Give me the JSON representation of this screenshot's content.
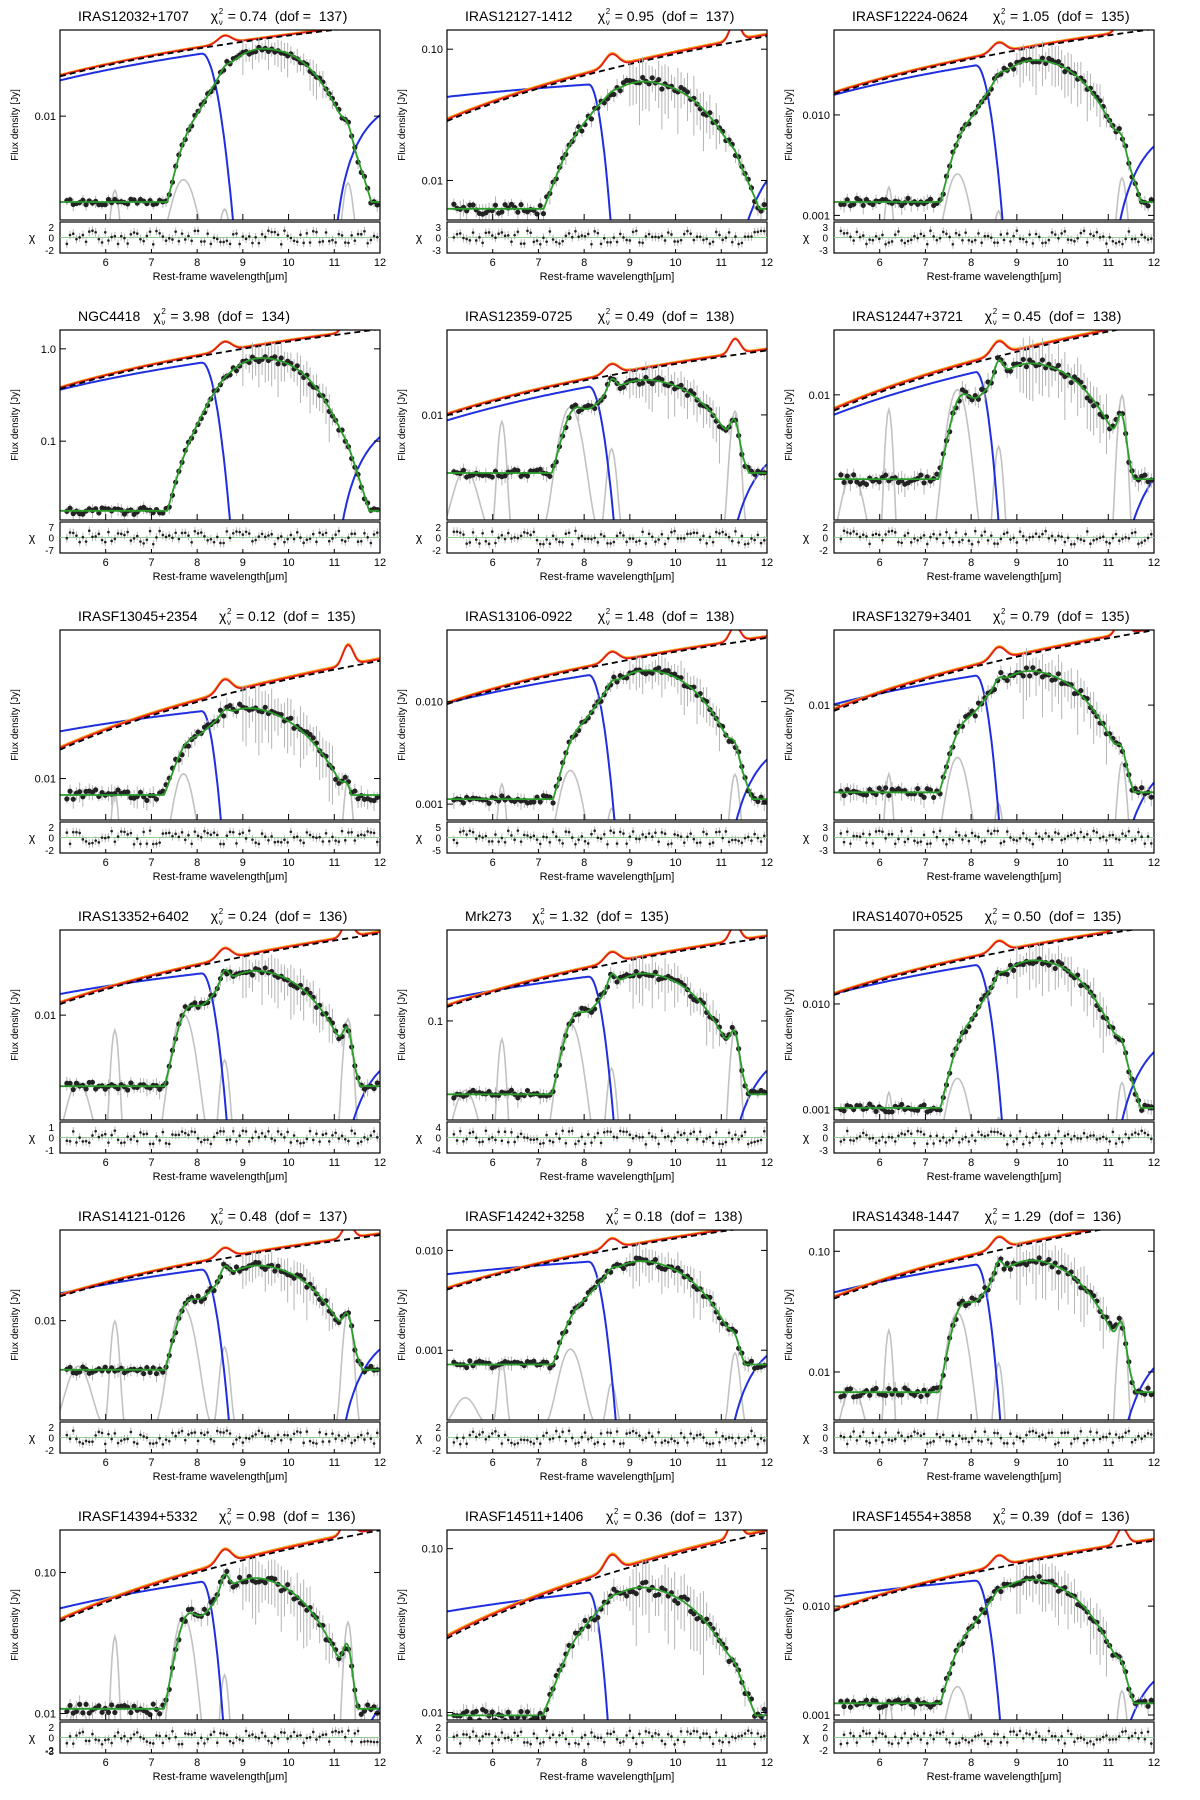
{
  "figure": {
    "xlabel": "Rest-frame wavelength[μm]",
    "ylabel": "Flux density [Jy]",
    "residual_label": "χ",
    "chi_symbol": "χ",
    "nu_sub": "ν",
    "colors": {
      "data": "#222222",
      "error": "#b4b4b4",
      "total_fit": "#2a9d2a",
      "model": "#e61c1c",
      "unobscured": "#f5a011",
      "continuum": "#1f2fe0",
      "pah": "#c2c2c2",
      "dashed": "#000000"
    }
  },
  "chart_data": [
    {
      "type": "line",
      "object": "IRAS12032+1707",
      "chi2": "0.74",
      "dof": "137",
      "xlim": [
        5,
        12
      ],
      "xticks": [
        "6",
        "7",
        "8",
        "9",
        "10",
        "11",
        "12"
      ],
      "ylim": [
        0.0005,
        0.12
      ],
      "yticks": [
        "0.01"
      ],
      "rticks": [
        "2",
        "0",
        "-2"
      ],
      "variant": "clear",
      "peak": 0.07,
      "trough": 0.00105,
      "slope": 1.6
    },
    {
      "type": "line",
      "object": "IRAS12127-1412",
      "chi2": "0.95",
      "dof": "137",
      "xlim": [
        5,
        12
      ],
      "xticks": [
        "6",
        "7",
        "8",
        "9",
        "10",
        "11",
        "12"
      ],
      "ylim": [
        0.005,
        0.14
      ],
      "yticks": [
        "0.10",
        "0.01"
      ],
      "rticks": [
        "3",
        "0",
        "-3"
      ],
      "variant": "broad",
      "peak": 0.063,
      "trough": 0.0076,
      "slope": 0.45
    },
    {
      "type": "line",
      "object": "IRASF12224-0624",
      "chi2": "1.05",
      "dof": "135",
      "xlim": [
        5,
        12
      ],
      "xticks": [
        "6",
        "7",
        "8",
        "9",
        "10",
        "11",
        "12"
      ],
      "ylim": [
        0.0009,
        0.07
      ],
      "yticks": [
        "0.010",
        "0.001"
      ],
      "rticks": [
        "3",
        "0",
        "-3"
      ],
      "variant": "clear",
      "peak": 0.036,
      "trough": 0.0017,
      "slope": 1.4
    },
    {
      "type": "line",
      "object": "NGC4418",
      "chi2": "3.98",
      "dof": "134",
      "xlim": [
        5,
        12
      ],
      "xticks": [
        "6",
        "7",
        "8",
        "9",
        "10",
        "11",
        "12"
      ],
      "ylim": [
        0.014,
        1.6
      ],
      "yticks": [
        "1.0",
        "0.1"
      ],
      "rticks": [
        "7",
        "0",
        "-7"
      ],
      "variant": "deep",
      "peak": 0.82,
      "trough": 0.022,
      "slope": 1.4
    },
    {
      "type": "line",
      "object": "IRAS12359-0725",
      "chi2": "0.49",
      "dof": "138",
      "xlim": [
        5,
        12
      ],
      "xticks": [
        "6",
        "7",
        "8",
        "9",
        "10",
        "11",
        "12"
      ],
      "ylim": [
        0.0009,
        0.07
      ],
      "yticks": [
        "0.01"
      ],
      "rticks": [
        "2",
        "0",
        "-2"
      ],
      "variant": "pah",
      "peak": 0.022,
      "trough": 0.0033,
      "slope": 1.6
    },
    {
      "type": "line",
      "object": "IRAS12447+3721",
      "chi2": "0.45",
      "dof": "138",
      "xlim": [
        5,
        12
      ],
      "xticks": [
        "6",
        "7",
        "8",
        "9",
        "10",
        "11",
        "12"
      ],
      "ylim": [
        0.0012,
        0.03
      ],
      "yticks": [
        "0.01"
      ],
      "rticks": [
        "2",
        "0",
        "-2"
      ],
      "variant": "pah",
      "peak": 0.017,
      "trough": 0.003,
      "slope": 1.5
    },
    {
      "type": "line",
      "object": "IRASF13045+2354",
      "chi2": "0.12",
      "dof": "135",
      "xlim": [
        5,
        12
      ],
      "xticks": [
        "6",
        "7",
        "8",
        "9",
        "10",
        "11",
        "12"
      ],
      "ylim": [
        0.005,
        0.12
      ],
      "yticks": [
        "0.01"
      ],
      "rticks": [
        "2",
        "0",
        "-2"
      ],
      "variant": "shallow",
      "peak": 0.036,
      "trough": 0.0095,
      "slope": 0.7
    },
    {
      "type": "line",
      "object": "IRAS13106-0922",
      "chi2": "1.48",
      "dof": "138",
      "xlim": [
        5,
        12
      ],
      "xticks": [
        "6",
        "7",
        "8",
        "9",
        "10",
        "11",
        "12"
      ],
      "ylim": [
        0.0007,
        0.05
      ],
      "yticks": [
        "0.010",
        "0.001"
      ],
      "rticks": [
        "5",
        "0",
        "-5"
      ],
      "variant": "clear",
      "peak": 0.021,
      "trough": 0.0014,
      "slope": 1.3
    },
    {
      "type": "line",
      "object": "IRASF13279+3401",
      "chi2": "0.79",
      "dof": "135",
      "xlim": [
        5,
        12
      ],
      "xticks": [
        "6",
        "7",
        "8",
        "9",
        "10",
        "11",
        "12"
      ],
      "ylim": [
        0.0012,
        0.04
      ],
      "yticks": [
        "0.01"
      ],
      "rticks": [
        "3",
        "0",
        "-3"
      ],
      "variant": "clear",
      "peak": 0.02,
      "trough": 0.0025,
      "slope": 1.1
    },
    {
      "type": "line",
      "object": "IRAS13352+6402",
      "chi2": "0.24",
      "dof": "136",
      "xlim": [
        5,
        12
      ],
      "xticks": [
        "6",
        "7",
        "8",
        "9",
        "10",
        "11",
        "12"
      ],
      "ylim": [
        0.0011,
        0.06
      ],
      "yticks": [
        "0.01"
      ],
      "rticks": [
        "1",
        "0",
        "-1"
      ],
      "variant": "pah",
      "peak": 0.028,
      "trough": 0.0028,
      "slope": 0.9
    },
    {
      "type": "line",
      "object": "Mrk273",
      "chi2": "1.32",
      "dof": "135",
      "xlim": [
        5,
        12
      ],
      "xticks": [
        "6",
        "7",
        "8",
        "9",
        "10",
        "11",
        "12"
      ],
      "ylim": [
        0.012,
        0.7
      ],
      "yticks": [
        "0.1"
      ],
      "rticks": [
        "4",
        "0",
        "-4"
      ],
      "variant": "pah",
      "peak": 0.3,
      "trough": 0.026,
      "slope": 1.0
    },
    {
      "type": "line",
      "object": "IRAS14070+0525",
      "chi2": "0.50",
      "dof": "135",
      "xlim": [
        5,
        12
      ],
      "xticks": [
        "6",
        "7",
        "8",
        "9",
        "10",
        "11",
        "12"
      ],
      "ylim": [
        0.0008,
        0.05
      ],
      "yticks": [
        "0.010",
        "0.001"
      ],
      "rticks": [
        "3",
        "0",
        "-3"
      ],
      "variant": "clear",
      "peak": 0.027,
      "trough": 0.0013,
      "slope": 1.3
    },
    {
      "type": "line",
      "object": "IRAS14121-0126",
      "chi2": "0.48",
      "dof": "137",
      "xlim": [
        5,
        12
      ],
      "xticks": [
        "6",
        "7",
        "8",
        "9",
        "10",
        "11",
        "12"
      ],
      "ylim": [
        0.0009,
        0.09
      ],
      "yticks": [
        "0.01"
      ],
      "rticks": [
        "2",
        "0",
        "-2"
      ],
      "variant": "pah",
      "peak": 0.04,
      "trough": 0.0038,
      "slope": 1.2
    },
    {
      "type": "line",
      "object": "IRASF14242+3258",
      "chi2": "0.18",
      "dof": "138",
      "xlim": [
        5,
        12
      ],
      "xticks": [
        "6",
        "7",
        "8",
        "9",
        "10",
        "11",
        "12"
      ],
      "ylim": [
        0.0002,
        0.016
      ],
      "yticks": [
        "0.010",
        "0.001"
      ],
      "rticks": [
        "2",
        "0",
        "-2"
      ],
      "variant": "shallow",
      "peak": 0.009,
      "trough": 0.0009,
      "slope": 0.6
    },
    {
      "type": "line",
      "object": "IRAS14348-1447",
      "chi2": "1.29",
      "dof": "136",
      "xlim": [
        5,
        12
      ],
      "xticks": [
        "6",
        "7",
        "8",
        "9",
        "10",
        "11",
        "12"
      ],
      "ylim": [
        0.004,
        0.15
      ],
      "yticks": [
        "0.10",
        "0.01"
      ],
      "rticks": [
        "3",
        "0",
        "-3"
      ],
      "variant": "pah",
      "peak": 0.09,
      "trough": 0.0085,
      "slope": 1.1
    },
    {
      "type": "line",
      "object": "IRASF14394+5332",
      "chi2": "0.98",
      "dof": "136",
      "xlim": [
        5,
        12
      ],
      "xticks": [
        "6",
        "7",
        "8",
        "9",
        "10",
        "11",
        "12"
      ],
      "ylim": [
        0.009,
        0.2
      ],
      "yticks": [
        "0.10",
        "0.01"
      ],
      "rticks": [
        "2",
        "0",
        "-2",
        "-3"
      ],
      "variant": "pah",
      "peak": 0.1,
      "trough": 0.0135,
      "slope": 0.9
    },
    {
      "type": "line",
      "object": "IRASF14511+1406",
      "chi2": "0.36",
      "dof": "137",
      "xlim": [
        5,
        12
      ],
      "xticks": [
        "6",
        "7",
        "8",
        "9",
        "10",
        "11",
        "12"
      ],
      "ylim": [
        0.009,
        0.13
      ],
      "yticks": [
        "0.10",
        "0.01"
      ],
      "rticks": [
        "2",
        "0",
        "-2"
      ],
      "variant": "broad",
      "peak": 0.063,
      "trough": 0.012,
      "slope": 0.55
    },
    {
      "type": "line",
      "object": "IRASF14554+3858",
      "chi2": "0.39",
      "dof": "136",
      "xlim": [
        5,
        12
      ],
      "xticks": [
        "6",
        "7",
        "8",
        "9",
        "10",
        "11",
        "12"
      ],
      "ylim": [
        0.0009,
        0.05
      ],
      "yticks": [
        "0.010",
        "0.001"
      ],
      "rticks": [
        "2",
        "0",
        "-2"
      ],
      "variant": "shallow",
      "peak": 0.02,
      "trough": 0.0016,
      "slope": 0.7
    }
  ]
}
